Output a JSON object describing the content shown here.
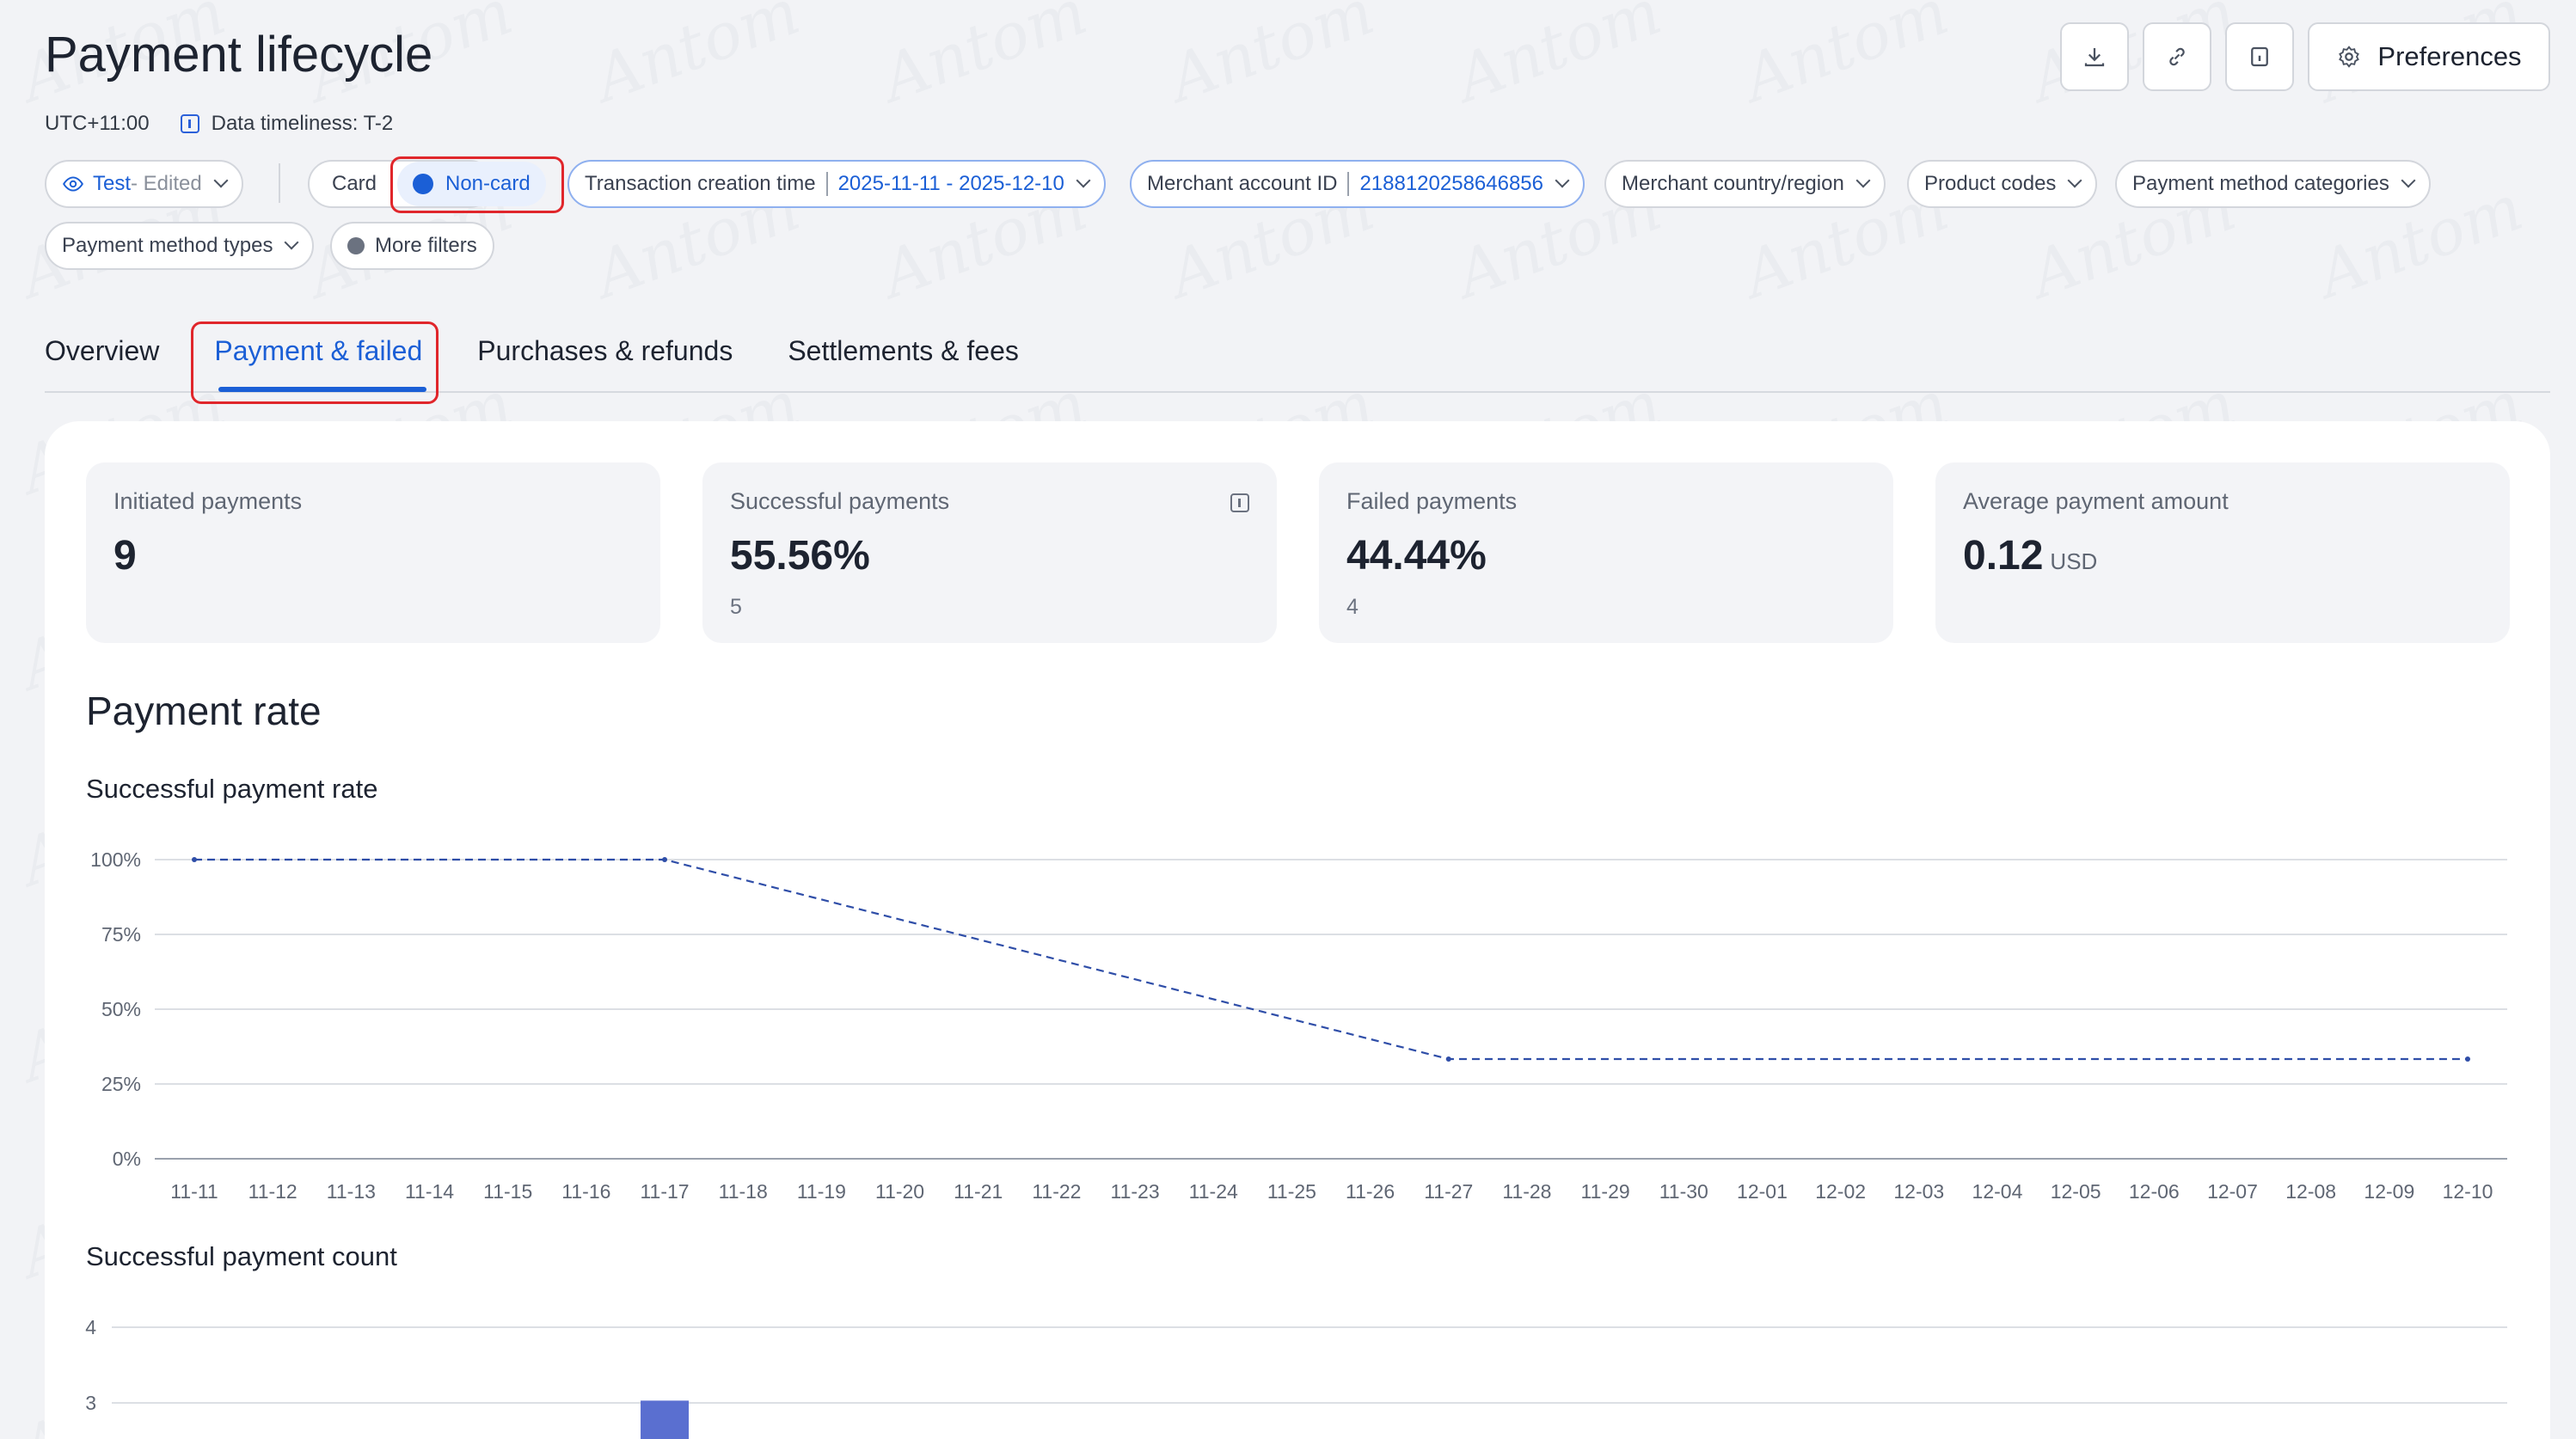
{
  "page": {
    "title": "Payment lifecycle",
    "timezone": "UTC+11:00",
    "timeliness": "Data timeliness: T-2"
  },
  "toolbar": {
    "download_icon": "download-icon",
    "link_icon": "link-icon",
    "info_icon": "info-icon",
    "preferences_label": "Preferences"
  },
  "filters": {
    "view": {
      "label": "Test",
      "suffix": " - Edited"
    },
    "card_label": "Card",
    "noncard_label": "Non-card",
    "transaction_time": {
      "label": "Transaction creation time",
      "value": "2025-11-11 - 2025-12-10"
    },
    "merchant_account": {
      "label": "Merchant account ID",
      "value": "2188120258646856"
    },
    "country": "Merchant country/region",
    "product_codes": "Product codes",
    "method_categories": "Payment method categories",
    "method_types": "Payment method types",
    "more_filters": "More filters"
  },
  "tabs": [
    {
      "label": "Overview"
    },
    {
      "label": "Payment & failed"
    },
    {
      "label": "Purchases & refunds"
    },
    {
      "label": "Settlements & fees"
    }
  ],
  "active_tab": "Payment & failed",
  "metrics": [
    {
      "label": "Initiated payments",
      "value": "9",
      "sub": ""
    },
    {
      "label": "Successful payments",
      "value": "55.56%",
      "sub": "5"
    },
    {
      "label": "Failed payments",
      "value": "44.44%",
      "sub": "4"
    },
    {
      "label": "Average payment amount",
      "value": "0.12",
      "unit": "USD"
    }
  ],
  "section": {
    "title": "Payment rate",
    "rate_title": "Successful payment rate",
    "count_title": "Successful payment count"
  },
  "watermark_text": "Antom",
  "colors": {
    "accent": "#1b5fd6",
    "series": "#2f4ea8",
    "highlight": "#e0262b"
  },
  "chart_data": [
    {
      "type": "line",
      "title": "Successful payment rate",
      "y_tick_labels": [
        "0%",
        "25%",
        "50%",
        "75%",
        "100%"
      ],
      "ylim": [
        0,
        100
      ],
      "x": [
        "11-11",
        "11-12",
        "11-13",
        "11-14",
        "11-15",
        "11-16",
        "11-17",
        "11-18",
        "11-19",
        "11-20",
        "11-21",
        "11-22",
        "11-23",
        "11-24",
        "11-25",
        "11-26",
        "11-27",
        "11-28",
        "11-29",
        "11-30",
        "12-01",
        "12-02",
        "12-03",
        "12-04",
        "12-05",
        "12-06",
        "12-07",
        "12-08",
        "12-09",
        "12-10"
      ],
      "points": [
        {
          "x": "11-11",
          "y": 100
        },
        {
          "x": "11-17",
          "y": 100
        },
        {
          "x": "11-27",
          "y": 33.33
        },
        {
          "x": "12-10",
          "y": 33.33
        }
      ],
      "grid": true,
      "line_style": "dashed"
    },
    {
      "type": "bar",
      "title": "Successful payment count",
      "y_tick_labels": [
        "3",
        "4"
      ],
      "visible_y_range": [
        3,
        4
      ],
      "bars": [
        {
          "x": "11-17",
          "value": 3
        }
      ],
      "grid": true
    }
  ]
}
